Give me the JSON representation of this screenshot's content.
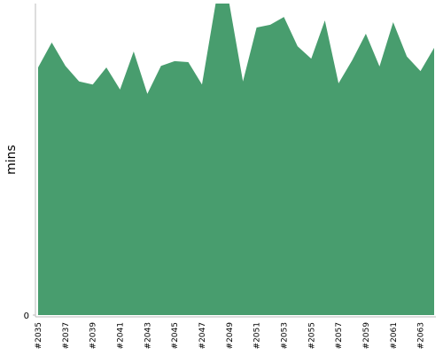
{
  "chart_data": {
    "type": "area",
    "y_label": "mins",
    "categories": [
      "#2035",
      null,
      "#2037",
      null,
      "#2039",
      null,
      "#2041",
      null,
      "#2043",
      null,
      "#2045",
      null,
      "#2047",
      null,
      "#2049",
      null,
      "#2051",
      null,
      "#2053",
      null,
      "#2055",
      null,
      "#2057",
      null,
      "#2059",
      null,
      "#2061",
      null,
      "#2063",
      null
    ],
    "values": [
      79.5,
      87.5,
      80,
      75,
      74,
      79.5,
      72.4,
      84.6,
      71,
      80,
      81.5,
      81.2,
      74,
      100,
      100,
      75,
      92.3,
      93.2,
      95.7,
      86.3,
      82.3,
      94.6,
      74.4,
      81.8,
      90.3,
      79.8,
      94,
      83,
      78.3,
      85.8
    ],
    "color": "#489d6e",
    "ylim": [
      0,
      100
    ],
    "yticks": [
      0
    ]
  }
}
